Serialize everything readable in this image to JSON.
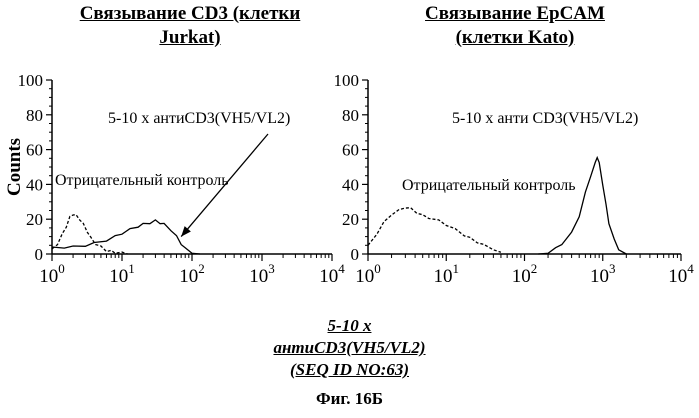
{
  "chart_data": [
    {
      "type": "line",
      "title": "Связывание CD3 (клетки Jurkat)",
      "title_lines": [
        "Связывание CD3 (клетки",
        "Jurkat)"
      ],
      "ylabel": "Counts",
      "xlabel": "",
      "xscale": "log",
      "xlim": [
        1,
        10000
      ],
      "ylim": [
        0,
        100
      ],
      "yticks": [
        "0",
        "20",
        "40",
        "60",
        "80",
        "100"
      ],
      "xticks": [
        {
          "base": "10",
          "exp": "0"
        },
        {
          "base": "10",
          "exp": "1"
        },
        {
          "base": "10",
          "exp": "2"
        },
        {
          "base": "10",
          "exp": "3"
        },
        {
          "base": "10",
          "exp": "4"
        }
      ],
      "grid": false,
      "series": [
        {
          "name": "Отрицательный контроль",
          "style": "dashed",
          "x": [
            1,
            1.2,
            1.4,
            1.6,
            1.8,
            2.0,
            2.2,
            2.5,
            2.8,
            3.2,
            3.6,
            4.2,
            5,
            6,
            7,
            8,
            10,
            12
          ],
          "y": [
            3,
            6,
            11,
            16,
            21,
            23,
            22,
            20,
            17,
            13,
            9,
            6,
            4,
            2,
            1.5,
            1,
            0.5,
            0
          ]
        },
        {
          "name": "5-10 х антиCD3(VH5/VL2)",
          "style": "solid",
          "x": [
            1,
            1.5,
            2,
            3,
            4,
            6,
            8,
            10,
            13,
            17,
            20,
            25,
            30,
            35,
            40,
            50,
            60,
            70,
            80,
            100,
            130
          ],
          "y": [
            4,
            4,
            4,
            5,
            6,
            8,
            10,
            12,
            14,
            16,
            17,
            18,
            19,
            18,
            17,
            14,
            10,
            6,
            3,
            1,
            0
          ]
        }
      ],
      "annotations": [
        {
          "text": "5-10 х антиCD3(VH5/VL2)",
          "arrow": true,
          "arrow_target": {
            "x": 70,
            "y": 10
          }
        },
        {
          "text": "Отрицательный контроль",
          "arrow": false
        }
      ]
    },
    {
      "type": "line",
      "title": "Связывание EpCAM (клетки Kato)",
      "title_lines": [
        "Связывание EpCAM",
        "(клетки Kato)"
      ],
      "ylabel": "",
      "xlabel": "",
      "xscale": "log",
      "xlim": [
        1,
        10000
      ],
      "ylim": [
        0,
        100
      ],
      "yticks": [
        "0",
        "20",
        "40",
        "60",
        "80",
        "100"
      ],
      "xticks": [
        {
          "base": "10",
          "exp": "0"
        },
        {
          "base": "10",
          "exp": "1"
        },
        {
          "base": "10",
          "exp": "2"
        },
        {
          "base": "10",
          "exp": "3"
        },
        {
          "base": "10",
          "exp": "4"
        }
      ],
      "grid": false,
      "series": [
        {
          "name": "Отрицательный контроль",
          "style": "dashed",
          "x": [
            1,
            1.3,
            1.6,
            2.0,
            2.5,
            3.0,
            3.5,
            4.2,
            5,
            6,
            8,
            10,
            13,
            17,
            20,
            25,
            30,
            40,
            50
          ],
          "y": [
            5,
            12,
            18,
            23,
            25,
            27,
            26,
            24,
            22,
            21,
            19,
            17,
            14,
            11,
            9,
            7,
            5,
            3,
            1
          ]
        },
        {
          "name": "5-10 х анти CD3(VH5/VL2)",
          "style": "solid",
          "x": [
            150,
            200,
            250,
            300,
            400,
            500,
            600,
            700,
            800,
            850,
            900,
            1000,
            1100,
            1200,
            1400,
            1600,
            2000
          ],
          "y": [
            0,
            1,
            3,
            6,
            12,
            22,
            35,
            45,
            52,
            56,
            52,
            40,
            28,
            18,
            8,
            3,
            0
          ]
        }
      ],
      "annotations": [
        {
          "text": "5-10 х анти CD3(VH5/VL2)",
          "arrow": false
        },
        {
          "text": "Отрицательный контроль",
          "arrow": false
        }
      ]
    }
  ],
  "footer": {
    "line1": "5-10 х",
    "line2": "антиCD3(VH5/VL2)",
    "line3": "(SEQ ID NO:63)",
    "figure": "Фиг. 16Б"
  }
}
